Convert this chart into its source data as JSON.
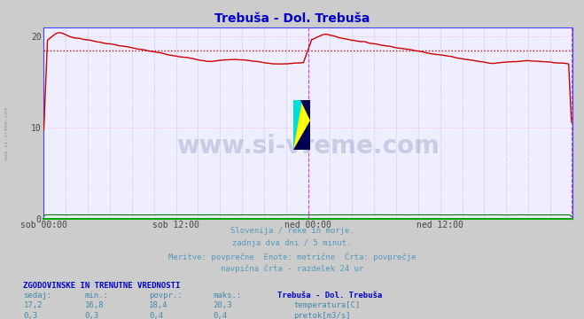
{
  "title": "Trebuša - Dol. Trebuša",
  "title_color": "#0000cc",
  "bg_color": "#cccccc",
  "plot_bg_color": "#eeeeff",
  "grid_color_h": "#ffaaaa",
  "grid_color_v": "#aaaaff",
  "xlim": [
    0,
    576
  ],
  "ylim": [
    0,
    21
  ],
  "yticks": [
    0,
    10,
    20
  ],
  "xtick_labels": [
    "sob 00:00",
    "sob 12:00",
    "ned 00:00",
    "ned 12:00"
  ],
  "xtick_positions": [
    0,
    144,
    288,
    432
  ],
  "avg_line_y": 18.4,
  "avg_line_color": "#cc0000",
  "temp_line_color": "#cc0000",
  "flow_line_color": "#007700",
  "vline1_x": 288,
  "vline2_x": 575,
  "vline_color": "#cc44cc",
  "text_lines": [
    "Slovenija / reke in morje.",
    "zadnja dva dni / 5 minut.",
    "Meritve: povprečne  Enote: metrične  Črta: povprečje",
    "navpična črta - razdelek 24 ur"
  ],
  "text_color": "#5599bb",
  "table_header_color": "#0000cc",
  "table_label_color": "#4488aa",
  "table_data_color": "#4488aa",
  "watermark_text": "www.si-vreme.com",
  "watermark_color": "#1a3a6a",
  "watermark_alpha": 0.18,
  "stat_labels": [
    "sedaj:",
    "min.:",
    "povpr.:",
    "maks.:"
  ],
  "temp_stats": [
    "17,2",
    "16,8",
    "18,4",
    "20,3"
  ],
  "flow_stats": [
    "0,3",
    "0,3",
    "0,4",
    "0,4"
  ],
  "legend_title": "Trebuša - Dol. Trebuša",
  "legend_temp_label": "temperatura[C]",
  "legend_flow_label": "pretok[m3/s]",
  "section_header": "ZGODOVINSKE IN TRENUTNE VREDNOSTI",
  "left_watermark": "www.si-vreme.com",
  "spine_color": "#4444ff",
  "bottom_spine_color": "#00aa00"
}
